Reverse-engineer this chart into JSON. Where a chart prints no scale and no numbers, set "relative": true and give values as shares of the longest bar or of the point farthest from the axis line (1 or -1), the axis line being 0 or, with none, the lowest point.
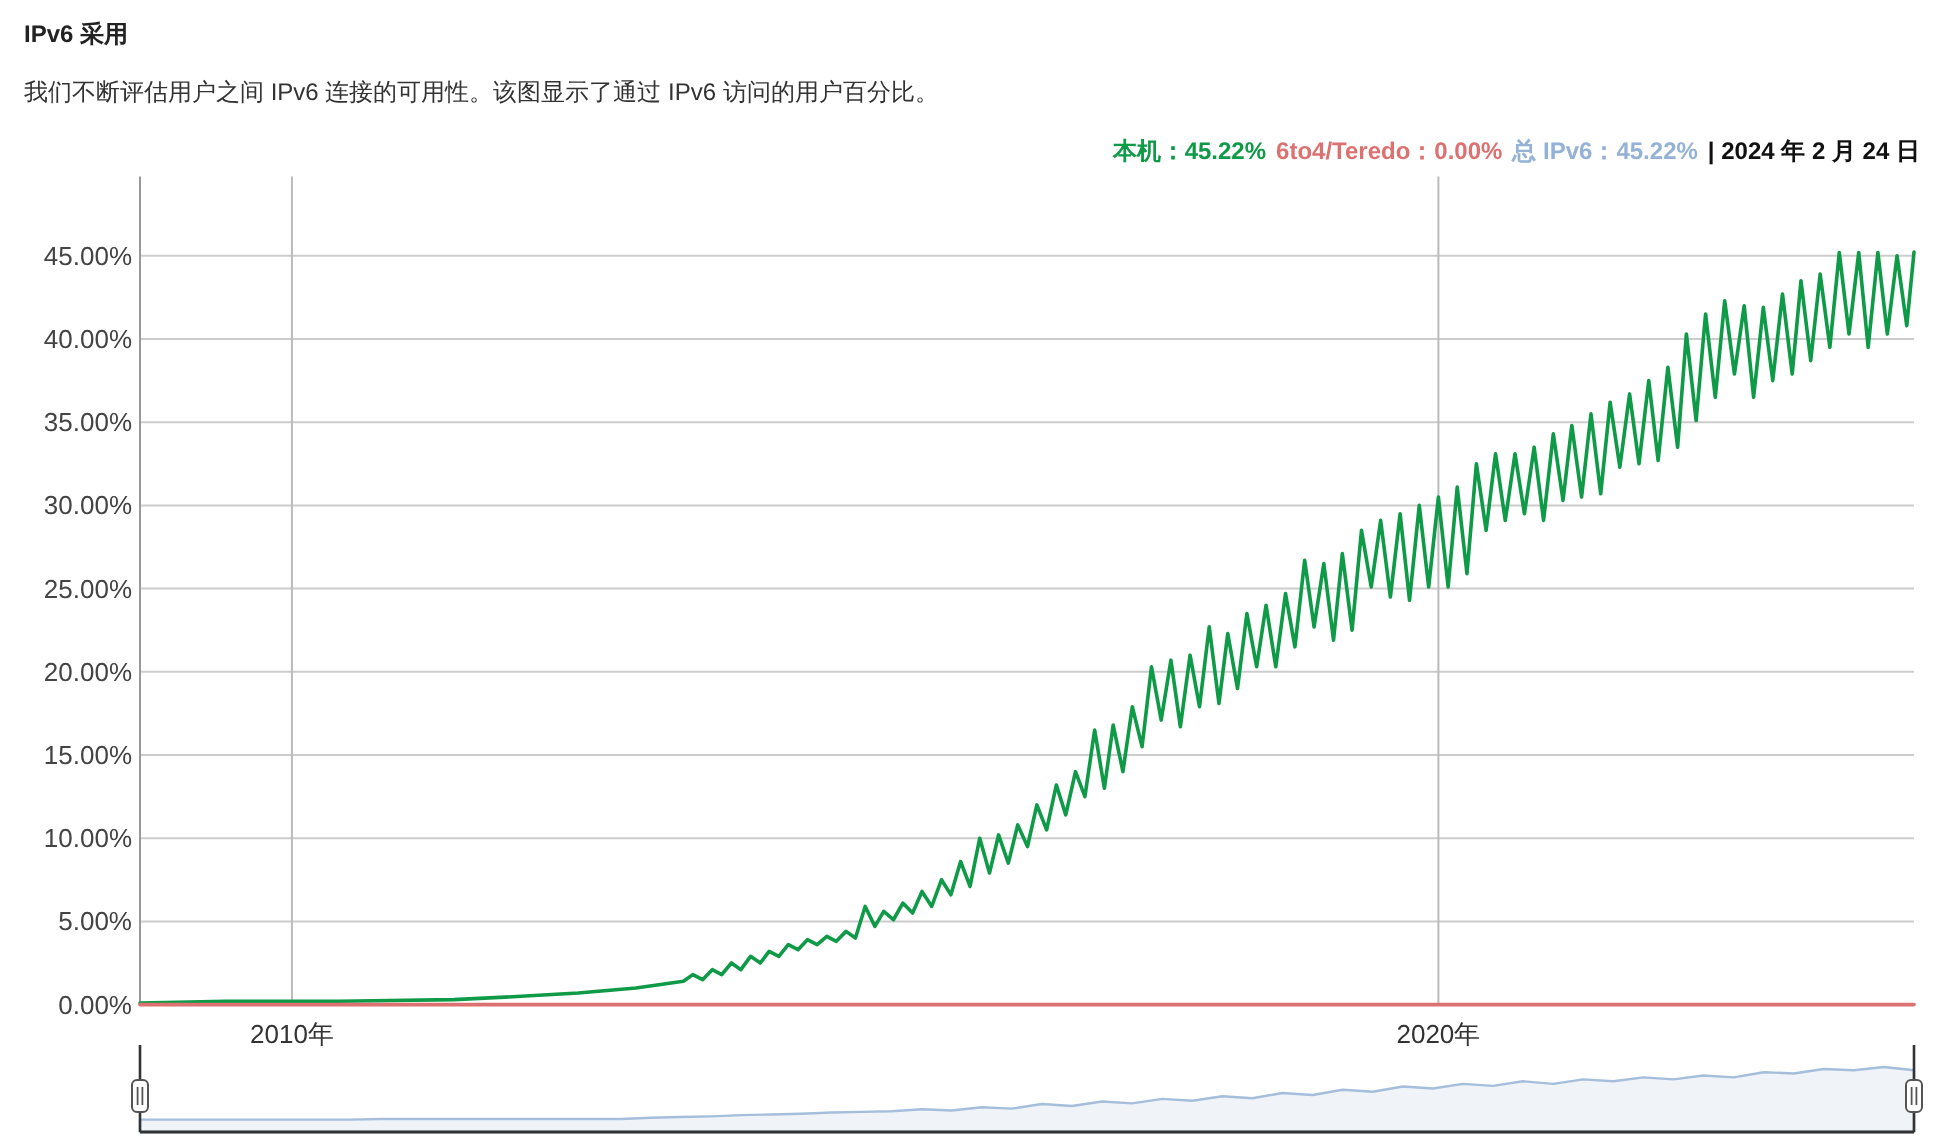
{
  "chart_data": [
    {
      "type": "line",
      "title": "IPv6 采用",
      "subtitle": "我们不断评估用户之间 IPv6 连接的可用性。该图显示了通过 IPv6 访问的用户百分比。",
      "annotations": [
        "| 2024 年 2 月 24 日"
      ],
      "legend": "top right",
      "grid": true,
      "xlim": [
        "2008-09-04",
        "2024-02-24"
      ],
      "xticks": [
        {
          "value": "2010",
          "label": "2010年"
        },
        {
          "value": "2020",
          "label": "2020年"
        }
      ],
      "ylim": [
        0,
        50
      ],
      "yticks": [
        {
          "value": 0,
          "label": "0.00%"
        },
        {
          "value": 5,
          "label": "5.00%"
        },
        {
          "value": 10,
          "label": "10.00%"
        },
        {
          "value": 15,
          "label": "15.00%"
        },
        {
          "value": 20,
          "label": "20.00%"
        },
        {
          "value": 25,
          "label": "25.00%"
        },
        {
          "value": 30,
          "label": "30.00%"
        },
        {
          "value": 35,
          "label": "35.00%"
        },
        {
          "value": 40,
          "label": "40.00%"
        },
        {
          "value": 45,
          "label": "45.00%"
        }
      ],
      "x": [
        "2008-09-04",
        "2009-06-01",
        "2010-06-01",
        "2011-06-01",
        "2012-01-01",
        "2012-07-01",
        "2013-01-01",
        "2013-06-01",
        "2013-07-01",
        "2013-08-01",
        "2013-09-01",
        "2013-10-01",
        "2013-11-01",
        "2013-12-01",
        "2014-01-01",
        "2014-02-01",
        "2014-03-01",
        "2014-04-01",
        "2014-05-01",
        "2014-06-01",
        "2014-07-01",
        "2014-08-01",
        "2014-09-01",
        "2014-10-01",
        "2014-11-01",
        "2014-12-01",
        "2015-01-01",
        "2015-02-01",
        "2015-03-01",
        "2015-04-01",
        "2015-05-01",
        "2015-06-01",
        "2015-07-01",
        "2015-08-01",
        "2015-09-01",
        "2015-10-01",
        "2015-11-01",
        "2015-12-01",
        "2016-01-01",
        "2016-02-01",
        "2016-03-01",
        "2016-04-01",
        "2016-05-01",
        "2016-06-01",
        "2016-07-01",
        "2016-08-01",
        "2016-09-01",
        "2016-10-01",
        "2016-11-01",
        "2016-12-01",
        "2017-01-01",
        "2017-02-01",
        "2017-03-01",
        "2017-04-01",
        "2017-05-01",
        "2017-06-01",
        "2017-07-01",
        "2017-08-01",
        "2017-09-01",
        "2017-10-01",
        "2017-11-01",
        "2017-12-01",
        "2018-01-01",
        "2018-02-01",
        "2018-03-01",
        "2018-04-01",
        "2018-05-01",
        "2018-06-01",
        "2018-07-01",
        "2018-08-01",
        "2018-09-01",
        "2018-10-01",
        "2018-11-01",
        "2018-12-01",
        "2019-01-01",
        "2019-02-01",
        "2019-03-01",
        "2019-04-01",
        "2019-05-01",
        "2019-06-01",
        "2019-07-01",
        "2019-08-01",
        "2019-09-01",
        "2019-10-01",
        "2019-11-01",
        "2019-12-01",
        "2020-01-01",
        "2020-02-01",
        "2020-03-01",
        "2020-04-01",
        "2020-05-01",
        "2020-06-01",
        "2020-07-01",
        "2020-08-01",
        "2020-09-01",
        "2020-10-01",
        "2020-11-01",
        "2020-12-01",
        "2021-01-01",
        "2021-02-01",
        "2021-03-01",
        "2021-04-01",
        "2021-05-01",
        "2021-06-01",
        "2021-07-01",
        "2021-08-01",
        "2021-09-01",
        "2021-10-01",
        "2021-11-01",
        "2021-12-01",
        "2022-01-01",
        "2022-02-01",
        "2022-03-01",
        "2022-04-01",
        "2022-05-01",
        "2022-06-01",
        "2022-07-01",
        "2022-08-01",
        "2022-09-01",
        "2022-10-01",
        "2022-11-01",
        "2022-12-01",
        "2023-01-01",
        "2023-02-01",
        "2023-03-01",
        "2023-04-01",
        "2023-05-01",
        "2023-06-01",
        "2023-07-01",
        "2023-08-01",
        "2023-09-01",
        "2023-10-01",
        "2023-11-01",
        "2023-12-01",
        "2024-01-01",
        "2024-02-01",
        "2024-02-24"
      ],
      "series": [
        {
          "name": "本机：45.22%",
          "color": "#0f9a48",
          "values": [
            0.1,
            0.2,
            0.2,
            0.3,
            0.5,
            0.7,
            1.0,
            1.4,
            1.8,
            1.5,
            2.1,
            1.8,
            2.5,
            2.1,
            2.9,
            2.5,
            3.2,
            2.9,
            3.6,
            3.3,
            3.9,
            3.6,
            4.1,
            3.8,
            4.4,
            4.0,
            5.9,
            4.7,
            5.6,
            5.1,
            6.1,
            5.5,
            6.8,
            5.9,
            7.5,
            6.6,
            8.6,
            7.1,
            10.0,
            7.9,
            10.2,
            8.5,
            10.8,
            9.5,
            12.0,
            10.5,
            13.2,
            11.4,
            14.0,
            12.5,
            16.5,
            13.0,
            16.8,
            14.0,
            17.9,
            15.5,
            20.3,
            17.1,
            20.7,
            16.7,
            21.0,
            17.9,
            22.7,
            18.1,
            22.3,
            19.0,
            23.5,
            20.3,
            24.0,
            20.3,
            24.7,
            21.5,
            26.7,
            22.7,
            26.5,
            21.9,
            27.1,
            22.5,
            28.5,
            25.1,
            29.1,
            24.5,
            29.5,
            24.3,
            30.0,
            25.1,
            30.5,
            25.1,
            31.1,
            25.9,
            32.5,
            28.5,
            33.1,
            29.1,
            33.1,
            29.5,
            33.5,
            29.1,
            34.3,
            30.3,
            34.8,
            30.5,
            35.5,
            30.7,
            36.2,
            32.3,
            36.7,
            32.5,
            37.5,
            32.7,
            38.3,
            33.5,
            40.3,
            35.1,
            41.5,
            36.5,
            42.3,
            37.9,
            42.0,
            36.5,
            41.9,
            37.5,
            42.7,
            37.9,
            43.5,
            38.7,
            43.9,
            39.5,
            45.2,
            40.3,
            45.2,
            39.5,
            45.2,
            40.3,
            45.0,
            40.8,
            45.22
          ]
        },
        {
          "name": "6to4/Teredo：0.00%",
          "color": "#dd7070",
          "x": [
            "2008-09-04",
            "2024-02-24"
          ],
          "values": [
            0,
            0
          ]
        },
        {
          "name": "总 IPv6：45.22%",
          "color": "#94b2d6",
          "values": [
            null,
            null,
            null,
            null,
            null,
            null,
            null,
            null,
            null,
            null,
            null,
            null,
            null,
            null,
            null,
            null,
            null,
            null,
            null,
            null,
            null,
            null,
            null,
            null,
            null,
            null,
            null,
            null,
            null,
            null,
            null,
            null,
            null,
            null,
            null,
            null,
            null,
            null,
            null,
            null,
            null,
            null,
            null,
            null,
            null,
            null,
            null,
            null,
            null,
            null,
            null,
            null,
            null,
            null,
            null,
            null,
            null,
            null,
            null,
            null,
            null,
            null,
            null,
            null,
            null,
            null,
            null,
            null,
            null,
            null,
            null,
            null,
            null,
            null,
            null,
            null,
            null,
            null,
            null,
            null,
            null,
            null,
            null,
            null,
            null,
            null,
            null,
            null,
            null,
            null,
            null,
            null,
            null,
            null,
            null,
            null,
            null,
            null,
            null,
            null,
            null,
            null,
            null,
            null,
            null,
            null,
            null,
            null,
            null,
            null,
            null,
            null,
            null,
            null,
            null,
            null,
            null,
            null,
            null,
            null,
            null,
            null,
            null,
            null,
            null,
            null,
            null,
            null,
            null,
            null,
            null,
            null,
            null,
            null,
            null,
            null,
            null
          ]
        }
      ]
    },
    {
      "type": "area",
      "relative": true,
      "categories": [
        null,
        null,
        null,
        null,
        null,
        null,
        null,
        null,
        null,
        null,
        null,
        null,
        null,
        null,
        null,
        null,
        null,
        null,
        null,
        null,
        null,
        null,
        null,
        null,
        null,
        null,
        null,
        null,
        null,
        null,
        null,
        null,
        null,
        null,
        null,
        null,
        null,
        null,
        null,
        null,
        null,
        null,
        null,
        null,
        null,
        null,
        null,
        null,
        null,
        null,
        null,
        null,
        null,
        null,
        null,
        null,
        null,
        null,
        null,
        null
      ],
      "series": [
        {
          "color": "#a4bedb",
          "values": [
            0.19,
            0.19,
            0.19,
            0.19,
            0.19,
            0.19,
            0.19,
            0.19,
            0.2,
            0.2,
            0.2,
            0.2,
            0.2,
            0.2,
            0.2,
            0.2,
            0.2,
            0.22,
            0.23,
            0.24,
            0.26,
            0.27,
            0.28,
            0.3,
            0.31,
            0.32,
            0.35,
            0.33,
            0.38,
            0.36,
            0.43,
            0.4,
            0.47,
            0.44,
            0.51,
            0.48,
            0.55,
            0.52,
            0.6,
            0.57,
            0.65,
            0.62,
            0.7,
            0.67,
            0.74,
            0.71,
            0.78,
            0.74,
            0.81,
            0.78,
            0.84,
            0.81,
            0.87,
            0.84,
            0.92,
            0.9,
            0.97,
            0.95,
            1,
            0.95
          ]
        }
      ]
    }
  ]
}
